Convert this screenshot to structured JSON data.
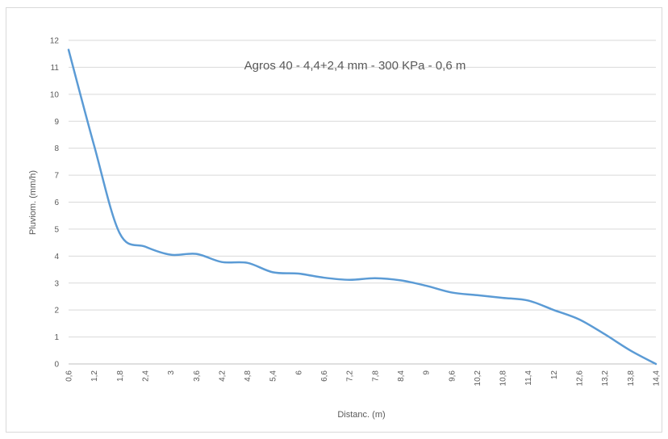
{
  "chart_data": {
    "type": "line",
    "title": "Agros 40 - 4,4+2,4 mm - 300 KPa - 0,6 m",
    "xlabel": "Distanc. (m)",
    "ylabel": "Pluviom. (mm/h)",
    "categories": [
      "0,6",
      "1,2",
      "1,8",
      "2,4",
      "3",
      "3,6",
      "4,2",
      "4,8",
      "5,4",
      "6",
      "6,6",
      "7,2",
      "7,8",
      "8,4",
      "9",
      "9,6",
      "10,2",
      "10,8",
      "11,4",
      "12",
      "12,6",
      "13,2",
      "13,8",
      "14,4"
    ],
    "series": [
      {
        "color": "#5b9bd5",
        "values": [
          11.65,
          8.1,
          4.85,
          4.35,
          4.05,
          4.08,
          3.78,
          3.75,
          3.4,
          3.35,
          3.2,
          3.12,
          3.18,
          3.1,
          2.9,
          2.65,
          2.55,
          2.45,
          2.35,
          2.0,
          1.65,
          1.1,
          0.5,
          0.0
        ]
      }
    ],
    "ylim": [
      0,
      12
    ],
    "yticks": [
      "0",
      "1",
      "2",
      "3",
      "4",
      "5",
      "6",
      "7",
      "8",
      "9",
      "10",
      "11",
      "12"
    ],
    "grid": true,
    "legend": "none"
  }
}
